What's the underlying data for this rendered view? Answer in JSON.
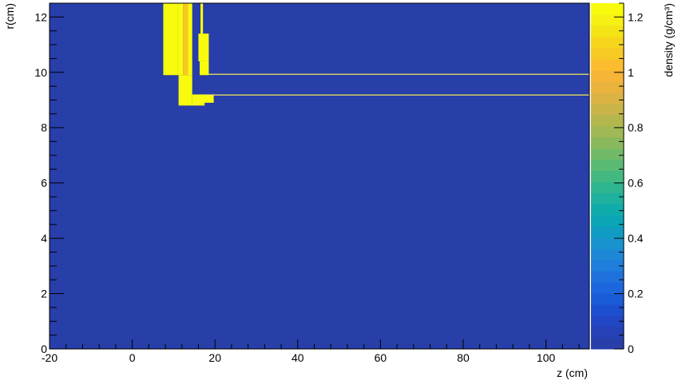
{
  "chart_data": {
    "type": "heatmap",
    "xlabel": "z (cm)",
    "ylabel": "r(cm)",
    "colorbar_label": "density (g/cm³)",
    "xlim": [
      -20,
      110.5
    ],
    "ylim": [
      0,
      12.5
    ],
    "zlim": [
      0,
      1.25
    ],
    "x_ticks": [
      -20,
      0,
      20,
      40,
      60,
      80,
      100
    ],
    "y_ticks": [
      0,
      2,
      4,
      6,
      8,
      10,
      12
    ],
    "colorbar_ticks": [
      0,
      0.2,
      0.4,
      0.6,
      0.8,
      1,
      1.2
    ],
    "background_density": 0,
    "grid": false,
    "legend": "colorbar-right",
    "colors": {
      "background": "#283ea8",
      "yellow": "#f8fa12",
      "orange": "#f0ae55",
      "line": "#f5e85a"
    },
    "palette": [
      "#283ea8",
      "#2641b6",
      "#2246c4",
      "#1c50d0",
      "#1a5bd8",
      "#1c67dd",
      "#1f72de",
      "#1f7edb",
      "#1d88d5",
      "#1893cd",
      "#109cc2",
      "#0aa5b7",
      "#10acab",
      "#1eb19d",
      "#2fb58f",
      "#44b881",
      "#5aba74",
      "#72ba68",
      "#8ab95d",
      "#a0b855",
      "#b4b64e",
      "#c8b449",
      "#dbb345",
      "#eab33e",
      "#f7b538",
      "#fbbd2e",
      "#f7c925",
      "#f5d61c",
      "#f4e416",
      "#f6f014",
      "#f9fb0e"
    ],
    "regions": [
      {
        "z0": 7.5,
        "z1": 11.0,
        "r0": 9.9,
        "r1": 12.5,
        "density": 1.25
      },
      {
        "z0": 11.0,
        "z1": 12.3,
        "r0": 9.9,
        "r1": 12.5,
        "density": 1.25
      },
      {
        "z0": 12.3,
        "z1": 13.5,
        "r0": 9.9,
        "r1": 12.5,
        "density": 1.05
      },
      {
        "z0": 13.5,
        "z1": 14.5,
        "r0": 9.9,
        "r1": 12.5,
        "density": 1.25
      },
      {
        "z0": 11.2,
        "z1": 14.5,
        "r0": 8.8,
        "r1": 9.9,
        "density": 1.25
      },
      {
        "z0": 16.5,
        "z1": 17.1,
        "r0": 11.4,
        "r1": 12.5,
        "density": 1.25
      },
      {
        "z0": 16.0,
        "z1": 18.5,
        "r0": 10.4,
        "r1": 11.4,
        "density": 1.25
      },
      {
        "z0": 16.3,
        "z1": 18.5,
        "r0": 9.9,
        "r1": 10.4,
        "density": 1.25
      },
      {
        "z0": 14.5,
        "z1": 17.5,
        "r0": 8.8,
        "r1": 9.2,
        "density": 1.25
      },
      {
        "z0": 16.5,
        "z1": 19.7,
        "r0": 8.9,
        "r1": 9.2,
        "density": 1.25
      }
    ],
    "thin_layers": [
      {
        "z0": 18.5,
        "z1": 110.5,
        "r": 9.93,
        "density": 1.25
      },
      {
        "z0": 17.5,
        "z1": 110.5,
        "r": 9.18,
        "density": 1.25
      }
    ]
  }
}
